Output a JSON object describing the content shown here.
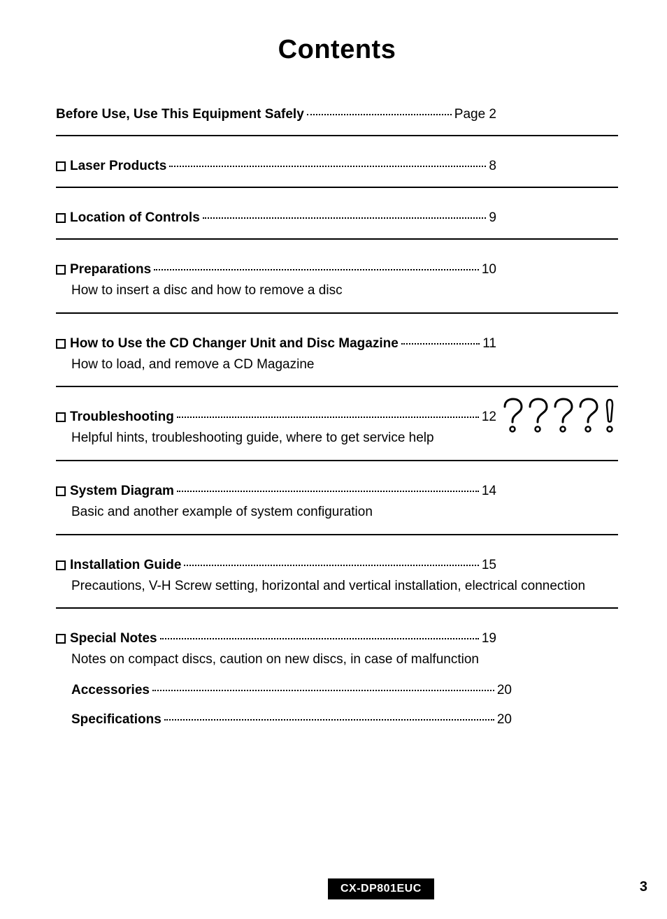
{
  "title": "Contents",
  "entries": [
    {
      "bullet": false,
      "label": "Before Use, Use This Equipment Safely",
      "page": "Page 2",
      "sub": null,
      "border": true
    },
    {
      "bullet": true,
      "label": "Laser Products",
      "page": "8",
      "sub": null,
      "border": true
    },
    {
      "bullet": true,
      "label": "Location of Controls",
      "page": "9",
      "sub": null,
      "border": true
    },
    {
      "bullet": true,
      "label": "Preparations",
      "page": "10",
      "sub": "How to insert a disc and how to remove a disc",
      "border": true
    },
    {
      "bullet": true,
      "label": "How to Use the CD Changer Unit and Disc Magazine",
      "page": "11",
      "sub": "How to load, and remove a CD Magazine",
      "border": true
    },
    {
      "bullet": true,
      "label": "Troubleshooting",
      "page": "12",
      "sub": "Helpful hints, troubleshooting guide, where to get service help",
      "border": true,
      "qmarks": true
    },
    {
      "bullet": true,
      "label": "System Diagram",
      "page": "14",
      "sub": "Basic and another example of system configuration",
      "border": true
    },
    {
      "bullet": true,
      "label": "Installation Guide",
      "page": "15",
      "sub": "Precautions, V-H Screw setting, horizontal and vertical installation, electrical connection",
      "border": true
    },
    {
      "bullet": true,
      "label": "Special Notes",
      "page": "19",
      "sub": "Notes on compact discs, caution on new discs, in case of malfunction",
      "border": false
    },
    {
      "bullet": false,
      "label": "Accessories",
      "page": "20",
      "sub": null,
      "border": false,
      "indent": true
    },
    {
      "bullet": false,
      "label": "Specifications",
      "page": "20",
      "sub": null,
      "border": false,
      "indent": true
    }
  ],
  "model": "CX-DP801EUC",
  "page_number": "3",
  "colors": {
    "text": "#000000",
    "background": "#ffffff",
    "badge_bg": "#000000",
    "badge_fg": "#ffffff"
  },
  "qmark_count": 4
}
